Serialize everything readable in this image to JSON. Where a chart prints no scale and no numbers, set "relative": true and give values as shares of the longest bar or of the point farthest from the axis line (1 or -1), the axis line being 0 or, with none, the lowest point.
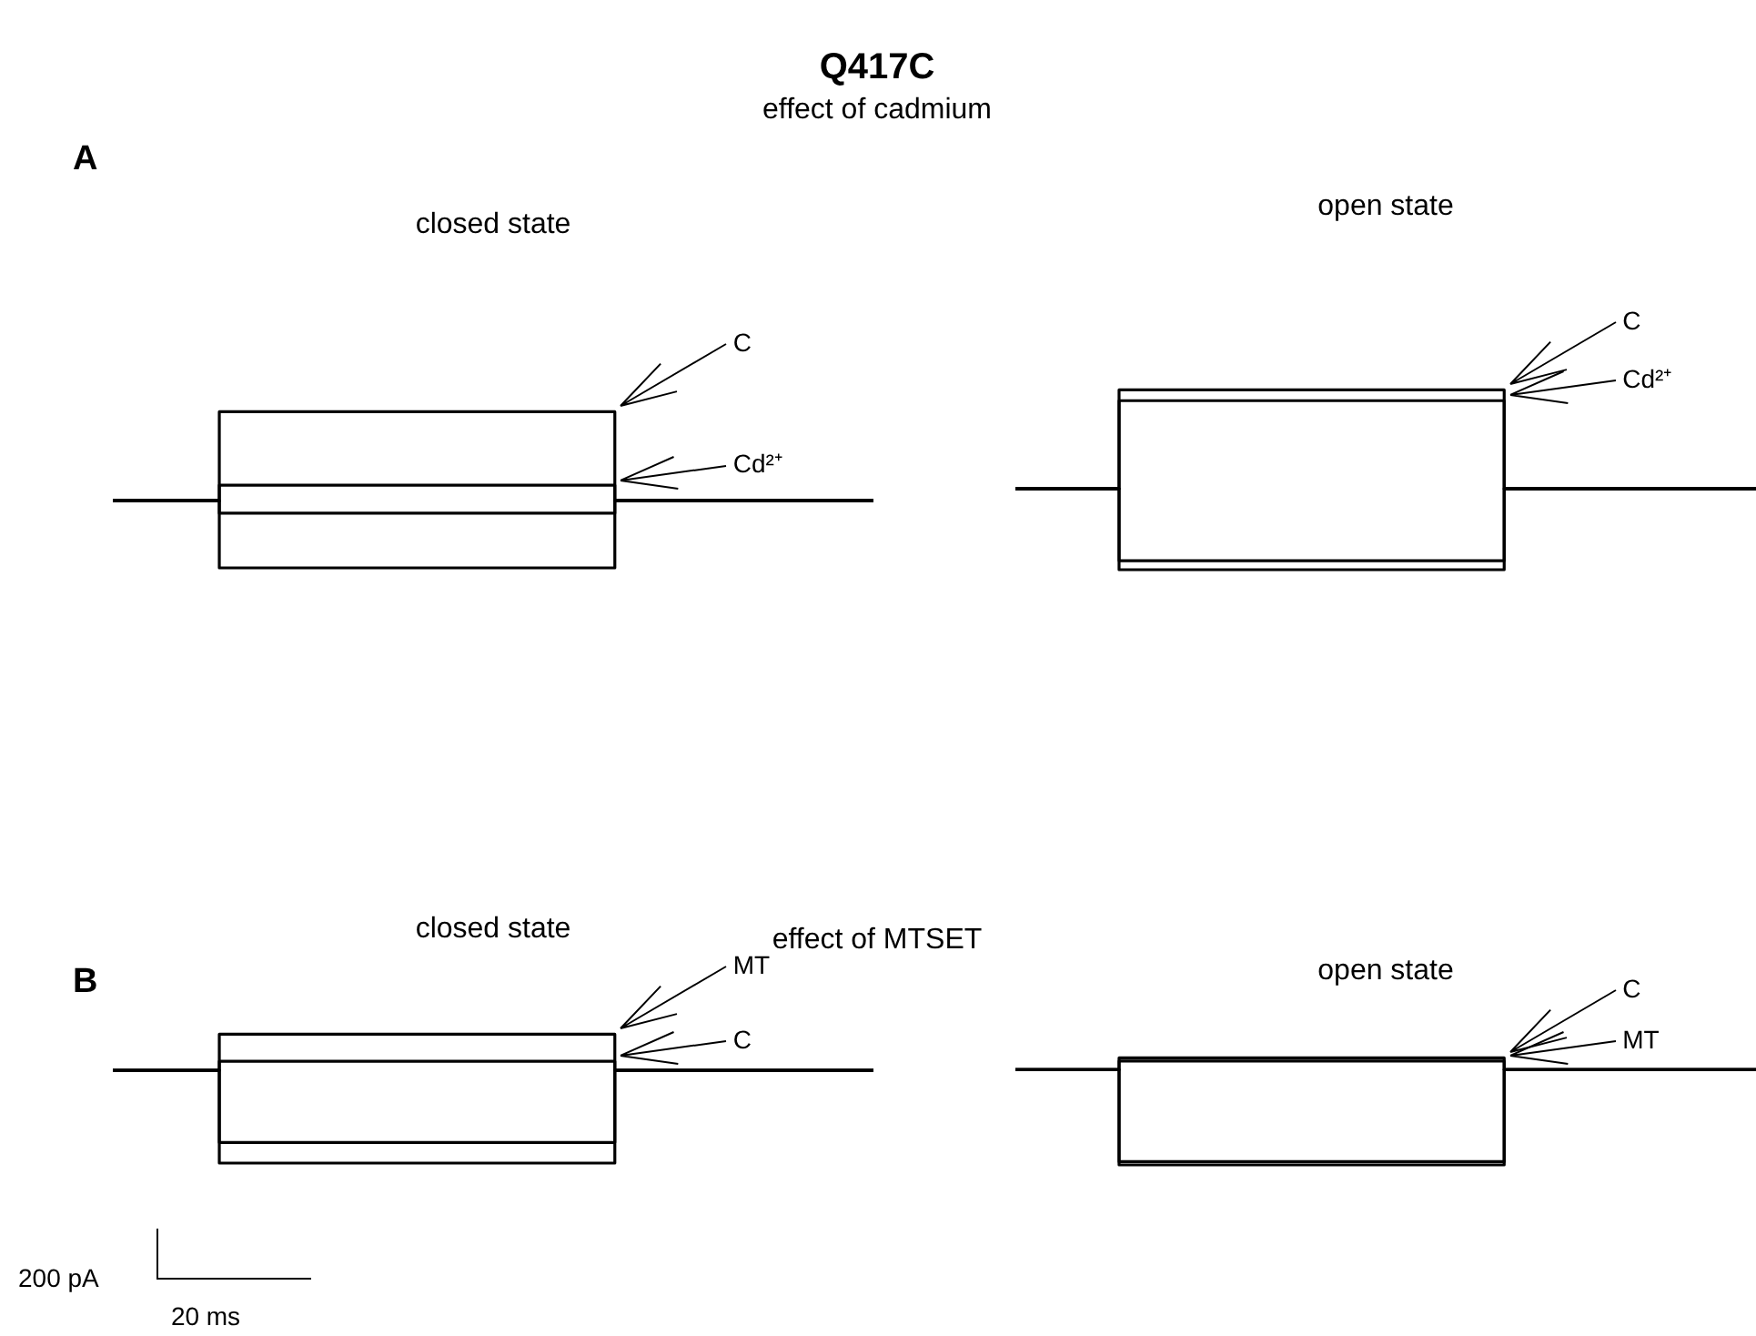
{
  "chart_data": [
    {
      "type": "step",
      "title": "closed state",
      "relative": true,
      "categories": [
        null,
        null,
        null,
        null,
        null,
        null,
        null,
        null,
        null,
        null,
        null,
        null,
        null,
        null,
        null,
        null,
        null,
        null,
        null,
        null,
        null,
        null,
        null,
        null,
        null,
        null
      ],
      "annotations": [
        "Q417C",
        "effect of cadmium",
        "A"
      ],
      "series": [
        {
          "name": "C",
          "color": "#000000",
          "values": [
            0.43,
            0.43,
            0.43,
            0.43,
            1,
            1,
            1,
            1,
            1,
            1,
            1,
            1,
            1,
            1,
            1,
            1,
            1,
            0.43,
            0.43,
            0.43,
            0.43,
            0.43,
            0.43,
            0.43,
            0.43,
            0.43
          ]
        },
        {
          "color": "#000000",
          "values": [
            0.43,
            0.43,
            0.43,
            0.43,
            0,
            0,
            0,
            0,
            0,
            0,
            0,
            0,
            0,
            0,
            0,
            0,
            0,
            0.43,
            0.43,
            0.43,
            0.43,
            0.43,
            0.43,
            0.43,
            0.43,
            0.43
          ]
        },
        {
          "name": "Cd²⁺",
          "color": "#000000",
          "values": [
            0.43,
            0.43,
            0.43,
            0.43,
            0.53,
            0.53,
            0.53,
            0.53,
            0.53,
            0.53,
            0.53,
            0.53,
            0.53,
            0.53,
            0.53,
            0.53,
            0.53,
            0.43,
            0.43,
            0.43,
            0.43,
            0.43,
            0.43,
            0.43,
            0.43,
            0.43
          ]
        },
        {
          "color": "#000000",
          "values": [
            0.43,
            0.43,
            0.43,
            0.43,
            0.35,
            0.35,
            0.35,
            0.35,
            0.35,
            0.35,
            0.35,
            0.35,
            0.35,
            0.35,
            0.35,
            0.35,
            0.35,
            0.43,
            0.43,
            0.43,
            0.43,
            0.43,
            0.43,
            0.43,
            0.43,
            0.43
          ]
        }
      ]
    },
    {
      "type": "step",
      "title": "open state",
      "relative": true,
      "categories": [
        null,
        null,
        null,
        null,
        null,
        null,
        null,
        null,
        null,
        null,
        null,
        null,
        null,
        null,
        null,
        null,
        null,
        null,
        null,
        null,
        null,
        null,
        null,
        null,
        null,
        null
      ],
      "series": [
        {
          "name": "C",
          "color": "#000000",
          "values": [
            0.45,
            0.45,
            0.45,
            0.45,
            1,
            1,
            1,
            1,
            1,
            1,
            1,
            1,
            1,
            1,
            1,
            1,
            1,
            0.45,
            0.45,
            0.45,
            0.45,
            0.45,
            0.45,
            0.45,
            0.45,
            0.45
          ]
        },
        {
          "name": "Cd²⁺",
          "color": "#000000",
          "values": [
            0.45,
            0.45,
            0.45,
            0.45,
            0.94,
            0.94,
            0.94,
            0.94,
            0.94,
            0.94,
            0.94,
            0.94,
            0.94,
            0.94,
            0.94,
            0.94,
            0.94,
            0.45,
            0.45,
            0.45,
            0.45,
            0.45,
            0.45,
            0.45,
            0.45,
            0.45
          ]
        },
        {
          "color": "#000000",
          "values": [
            0.45,
            0.45,
            0.45,
            0.45,
            0,
            0,
            0,
            0,
            0,
            0,
            0,
            0,
            0,
            0,
            0,
            0,
            0,
            0.45,
            0.45,
            0.45,
            0.45,
            0.45,
            0.45,
            0.45,
            0.45,
            0.45
          ]
        },
        {
          "color": "#000000",
          "values": [
            0.45,
            0.45,
            0.45,
            0.45,
            0.05,
            0.05,
            0.05,
            0.05,
            0.05,
            0.05,
            0.05,
            0.05,
            0.05,
            0.05,
            0.05,
            0.05,
            0.05,
            0.45,
            0.45,
            0.45,
            0.45,
            0.45,
            0.45,
            0.45,
            0.45,
            0.45
          ]
        }
      ]
    },
    {
      "type": "step",
      "title": "closed state",
      "relative": true,
      "categories": [
        null,
        null,
        null,
        null,
        null,
        null,
        null,
        null,
        null,
        null,
        null,
        null,
        null,
        null,
        null,
        null,
        null,
        null,
        null,
        null,
        null,
        null,
        null,
        null,
        null,
        null
      ],
      "annotations": [
        "effect of MTSET",
        "B",
        "200 pA",
        "20 ms"
      ],
      "series": [
        {
          "name": "MT",
          "color": "#000000",
          "values": [
            0.72,
            0.72,
            0.72,
            0.72,
            1,
            1,
            1,
            1,
            1,
            1,
            1,
            1,
            1,
            1,
            1,
            1,
            1,
            0.72,
            0.72,
            0.72,
            0.72,
            0.72,
            0.72,
            0.72,
            0.72,
            0.72
          ]
        },
        {
          "name": "C",
          "color": "#000000",
          "values": [
            0.72,
            0.72,
            0.72,
            0.72,
            0.79,
            0.79,
            0.79,
            0.79,
            0.79,
            0.79,
            0.79,
            0.79,
            0.79,
            0.79,
            0.79,
            0.79,
            0.79,
            0.72,
            0.72,
            0.72,
            0.72,
            0.72,
            0.72,
            0.72,
            0.72,
            0.72
          ]
        },
        {
          "color": "#000000",
          "values": [
            0.72,
            0.72,
            0.72,
            0.72,
            0.16,
            0.16,
            0.16,
            0.16,
            0.16,
            0.16,
            0.16,
            0.16,
            0.16,
            0.16,
            0.16,
            0.16,
            0.16,
            0.72,
            0.72,
            0.72,
            0.72,
            0.72,
            0.72,
            0.72,
            0.72,
            0.72
          ]
        },
        {
          "color": "#000000",
          "values": [
            0.72,
            0.72,
            0.72,
            0.72,
            0,
            0,
            0,
            0,
            0,
            0,
            0,
            0,
            0,
            0,
            0,
            0,
            0,
            0.72,
            0.72,
            0.72,
            0.72,
            0.72,
            0.72,
            0.72,
            0.72,
            0.72
          ]
        }
      ]
    },
    {
      "type": "step",
      "title": "open state",
      "relative": true,
      "categories": [
        null,
        null,
        null,
        null,
        null,
        null,
        null,
        null,
        null,
        null,
        null,
        null,
        null,
        null,
        null,
        null,
        null,
        null,
        null,
        null,
        null,
        null,
        null,
        null,
        null,
        null
      ],
      "series": [
        {
          "name": "C",
          "color": "#000000",
          "values": [
            0.89,
            0.89,
            0.89,
            0.89,
            1,
            1,
            1,
            1,
            1,
            1,
            1,
            1,
            1,
            1,
            1,
            1,
            1,
            0.89,
            0.89,
            0.89,
            0.89,
            0.89,
            0.89,
            0.89,
            0.89,
            0.89
          ]
        },
        {
          "name": "MT",
          "color": "#000000",
          "values": [
            0.89,
            0.89,
            0.89,
            0.89,
            0.97,
            0.97,
            0.97,
            0.97,
            0.97,
            0.97,
            0.97,
            0.97,
            0.97,
            0.97,
            0.97,
            0.97,
            0.97,
            0.89,
            0.89,
            0.89,
            0.89,
            0.89,
            0.89,
            0.89,
            0.89,
            0.89
          ]
        },
        {
          "color": "#000000",
          "values": [
            0.89,
            0.89,
            0.89,
            0.89,
            0,
            0,
            0,
            0,
            0,
            0,
            0,
            0,
            0,
            0,
            0,
            0,
            0,
            0.89,
            0.89,
            0.89,
            0.89,
            0.89,
            0.89,
            0.89,
            0.89,
            0.89
          ]
        },
        {
          "color": "#000000",
          "values": [
            0.89,
            0.89,
            0.89,
            0.89,
            0.03,
            0.03,
            0.03,
            0.03,
            0.03,
            0.03,
            0.03,
            0.03,
            0.03,
            0.03,
            0.03,
            0.03,
            0.03,
            0.89,
            0.89,
            0.89,
            0.89,
            0.89,
            0.89,
            0.89,
            0.89,
            0.89
          ]
        }
      ]
    }
  ]
}
